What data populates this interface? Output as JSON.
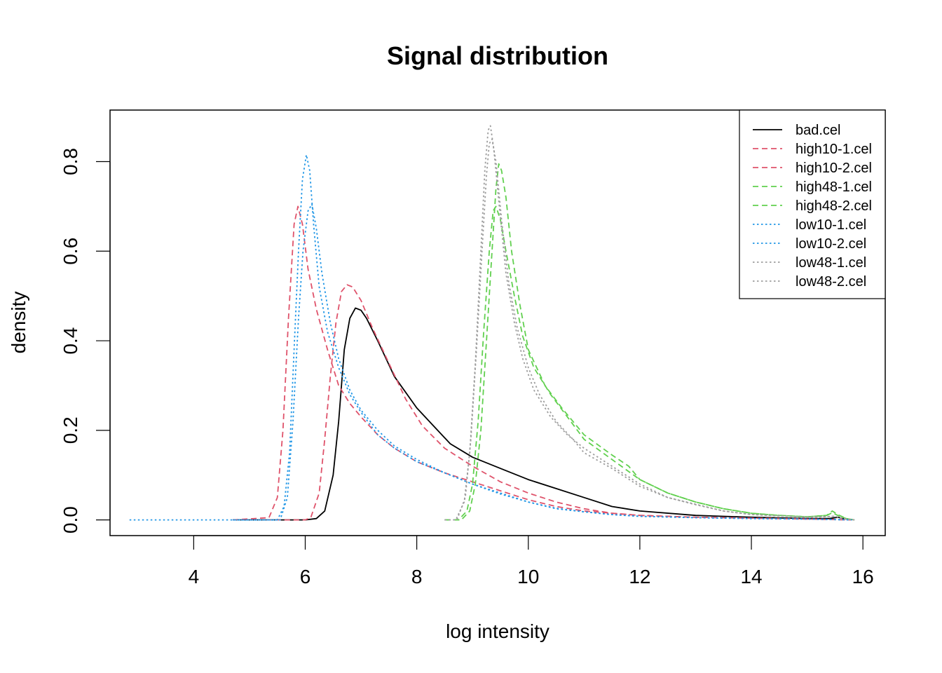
{
  "chart_data": {
    "type": "line",
    "title": "Signal distribution",
    "xlabel": "log intensity",
    "ylabel": "density",
    "xlim": [
      2.5,
      16.4
    ],
    "ylim": [
      -0.035,
      0.915
    ],
    "x_ticks": [
      4,
      6,
      8,
      10,
      12,
      14,
      16
    ],
    "y_ticks": [
      0.0,
      0.2,
      0.4,
      0.6,
      0.8
    ],
    "x_tick_labels": [
      "4",
      "6",
      "8",
      "10",
      "12",
      "14",
      "16"
    ],
    "y_tick_labels": [
      "0.0",
      "0.2",
      "0.4",
      "0.6",
      "0.8"
    ],
    "grid": false,
    "legend_position": "top-right",
    "series": [
      {
        "name": "bad.cel",
        "color": "#000000",
        "dash": "solid",
        "points": [
          [
            4.7,
            0
          ],
          [
            6.0,
            0
          ],
          [
            6.2,
            0.003
          ],
          [
            6.35,
            0.02
          ],
          [
            6.5,
            0.1
          ],
          [
            6.6,
            0.22
          ],
          [
            6.7,
            0.38
          ],
          [
            6.8,
            0.45
          ],
          [
            6.9,
            0.473
          ],
          [
            7.0,
            0.468
          ],
          [
            7.1,
            0.45
          ],
          [
            7.3,
            0.4
          ],
          [
            7.6,
            0.32
          ],
          [
            8.0,
            0.25
          ],
          [
            8.3,
            0.21
          ],
          [
            8.6,
            0.17
          ],
          [
            9.0,
            0.14
          ],
          [
            9.5,
            0.115
          ],
          [
            10.0,
            0.09
          ],
          [
            10.5,
            0.07
          ],
          [
            11.0,
            0.05
          ],
          [
            11.5,
            0.03
          ],
          [
            12.0,
            0.02
          ],
          [
            13.0,
            0.01
          ],
          [
            14.0,
            0.006
          ],
          [
            15.0,
            0.003
          ],
          [
            15.4,
            0.003
          ],
          [
            15.55,
            0.006
          ],
          [
            15.65,
            0.003
          ],
          [
            15.8,
            0
          ]
        ]
      },
      {
        "name": "high10-1.cel",
        "color": "#DF536B",
        "dash": "dashed",
        "points": [
          [
            5.3,
            0
          ],
          [
            6.0,
            0
          ],
          [
            6.1,
            0.005
          ],
          [
            6.25,
            0.06
          ],
          [
            6.35,
            0.18
          ],
          [
            6.45,
            0.32
          ],
          [
            6.55,
            0.44
          ],
          [
            6.65,
            0.51
          ],
          [
            6.75,
            0.525
          ],
          [
            6.85,
            0.52
          ],
          [
            7.0,
            0.49
          ],
          [
            7.2,
            0.43
          ],
          [
            7.5,
            0.35
          ],
          [
            7.8,
            0.27
          ],
          [
            8.1,
            0.21
          ],
          [
            8.5,
            0.16
          ],
          [
            9.0,
            0.12
          ],
          [
            9.5,
            0.085
          ],
          [
            10.0,
            0.06
          ],
          [
            10.5,
            0.04
          ],
          [
            11.0,
            0.025
          ],
          [
            11.5,
            0.015
          ],
          [
            12.0,
            0.01
          ],
          [
            13.0,
            0.006
          ],
          [
            14.0,
            0.004
          ],
          [
            15.0,
            0.002
          ],
          [
            15.8,
            0
          ]
        ]
      },
      {
        "name": "high10-2.cel",
        "color": "#DF536B",
        "dash": "dashed",
        "points": [
          [
            4.7,
            0
          ],
          [
            5.35,
            0.005
          ],
          [
            5.5,
            0.05
          ],
          [
            5.6,
            0.2
          ],
          [
            5.7,
            0.45
          ],
          [
            5.8,
            0.66
          ],
          [
            5.87,
            0.7
          ],
          [
            5.95,
            0.66
          ],
          [
            6.05,
            0.56
          ],
          [
            6.2,
            0.47
          ],
          [
            6.4,
            0.38
          ],
          [
            6.6,
            0.3
          ],
          [
            6.8,
            0.26
          ],
          [
            7.0,
            0.23
          ],
          [
            7.3,
            0.19
          ],
          [
            7.6,
            0.16
          ],
          [
            8.0,
            0.13
          ],
          [
            8.5,
            0.105
          ],
          [
            9.0,
            0.085
          ],
          [
            9.5,
            0.065
          ],
          [
            10.0,
            0.045
          ],
          [
            10.5,
            0.03
          ],
          [
            11.0,
            0.02
          ],
          [
            11.5,
            0.015
          ],
          [
            12.0,
            0.01
          ],
          [
            13.0,
            0.006
          ],
          [
            14.0,
            0.004
          ],
          [
            15.0,
            0.002
          ],
          [
            15.8,
            0
          ]
        ]
      },
      {
        "name": "high48-1.cel",
        "color": "#61D04F",
        "dash": "dashed",
        "points": [
          [
            8.5,
            0
          ],
          [
            8.8,
            0
          ],
          [
            8.95,
            0.02
          ],
          [
            9.05,
            0.08
          ],
          [
            9.15,
            0.2
          ],
          [
            9.25,
            0.4
          ],
          [
            9.35,
            0.6
          ],
          [
            9.42,
            0.74
          ],
          [
            9.47,
            0.795
          ],
          [
            9.52,
            0.78
          ],
          [
            9.6,
            0.72
          ],
          [
            9.7,
            0.6
          ],
          [
            9.85,
            0.48
          ],
          [
            10.0,
            0.38
          ],
          [
            10.3,
            0.3
          ],
          [
            10.6,
            0.25
          ],
          [
            11.0,
            0.19
          ],
          [
            11.5,
            0.145
          ],
          [
            11.8,
            0.12
          ],
          [
            12.0,
            0.09
          ],
          [
            12.5,
            0.06
          ],
          [
            13.0,
            0.04
          ],
          [
            13.5,
            0.025
          ],
          [
            14.0,
            0.015
          ],
          [
            14.5,
            0.01
          ],
          [
            15.0,
            0.007
          ],
          [
            15.35,
            0.01
          ],
          [
            15.45,
            0.02
          ],
          [
            15.55,
            0.012
          ],
          [
            15.7,
            0.003
          ],
          [
            15.85,
            0
          ]
        ]
      },
      {
        "name": "high48-2.cel",
        "color": "#61D04F",
        "dash": "dashed",
        "points": [
          [
            8.5,
            0
          ],
          [
            8.75,
            0
          ],
          [
            8.9,
            0.02
          ],
          [
            9.0,
            0.08
          ],
          [
            9.1,
            0.22
          ],
          [
            9.2,
            0.42
          ],
          [
            9.3,
            0.6
          ],
          [
            9.37,
            0.69
          ],
          [
            9.42,
            0.7
          ],
          [
            9.5,
            0.67
          ],
          [
            9.6,
            0.6
          ],
          [
            9.75,
            0.5
          ],
          [
            9.9,
            0.41
          ],
          [
            10.1,
            0.34
          ],
          [
            10.4,
            0.28
          ],
          [
            10.7,
            0.23
          ],
          [
            11.0,
            0.18
          ],
          [
            11.5,
            0.135
          ],
          [
            12.0,
            0.09
          ],
          [
            12.5,
            0.06
          ],
          [
            13.0,
            0.04
          ],
          [
            13.5,
            0.025
          ],
          [
            14.0,
            0.015
          ],
          [
            14.5,
            0.01
          ],
          [
            15.0,
            0.007
          ],
          [
            15.35,
            0.01
          ],
          [
            15.45,
            0.016
          ],
          [
            15.55,
            0.01
          ],
          [
            15.7,
            0.003
          ],
          [
            15.85,
            0
          ]
        ]
      },
      {
        "name": "low10-1.cel",
        "color": "#2297E6",
        "dash": "dotted",
        "points": [
          [
            2.85,
            0
          ],
          [
            5.5,
            0
          ],
          [
            5.62,
            0.03
          ],
          [
            5.72,
            0.15
          ],
          [
            5.8,
            0.38
          ],
          [
            5.88,
            0.6
          ],
          [
            5.95,
            0.76
          ],
          [
            6.02,
            0.815
          ],
          [
            6.08,
            0.78
          ],
          [
            6.15,
            0.66
          ],
          [
            6.25,
            0.52
          ],
          [
            6.4,
            0.42
          ],
          [
            6.6,
            0.34
          ],
          [
            6.8,
            0.28
          ],
          [
            7.0,
            0.24
          ],
          [
            7.3,
            0.19
          ],
          [
            7.6,
            0.16
          ],
          [
            8.0,
            0.13
          ],
          [
            8.5,
            0.105
          ],
          [
            9.0,
            0.08
          ],
          [
            9.5,
            0.06
          ],
          [
            10.0,
            0.04
          ],
          [
            10.5,
            0.025
          ],
          [
            11.0,
            0.018
          ],
          [
            11.5,
            0.012
          ],
          [
            12.0,
            0.008
          ],
          [
            13.0,
            0.005
          ],
          [
            14.0,
            0.003
          ],
          [
            15.0,
            0.002
          ],
          [
            15.8,
            0
          ]
        ]
      },
      {
        "name": "low10-2.cel",
        "color": "#2297E6",
        "dash": "dotted",
        "points": [
          [
            4.7,
            0
          ],
          [
            5.55,
            0
          ],
          [
            5.68,
            0.05
          ],
          [
            5.78,
            0.22
          ],
          [
            5.88,
            0.45
          ],
          [
            5.96,
            0.6
          ],
          [
            6.05,
            0.69
          ],
          [
            6.12,
            0.705
          ],
          [
            6.2,
            0.65
          ],
          [
            6.3,
            0.55
          ],
          [
            6.45,
            0.44
          ],
          [
            6.6,
            0.36
          ],
          [
            6.8,
            0.29
          ],
          [
            7.0,
            0.245
          ],
          [
            7.3,
            0.2
          ],
          [
            7.6,
            0.165
          ],
          [
            8.0,
            0.135
          ],
          [
            8.5,
            0.105
          ],
          [
            9.0,
            0.08
          ],
          [
            9.5,
            0.058
          ],
          [
            10.0,
            0.04
          ],
          [
            10.5,
            0.026
          ],
          [
            11.0,
            0.018
          ],
          [
            11.5,
            0.012
          ],
          [
            12.0,
            0.008
          ],
          [
            13.0,
            0.005
          ],
          [
            14.0,
            0.003
          ],
          [
            15.0,
            0.002
          ],
          [
            15.8,
            0
          ]
        ]
      },
      {
        "name": "low48-1.cel",
        "color": "#9E9E9E",
        "dash": "dotted",
        "points": [
          [
            8.5,
            0
          ],
          [
            8.7,
            0
          ],
          [
            8.85,
            0.04
          ],
          [
            8.95,
            0.15
          ],
          [
            9.05,
            0.35
          ],
          [
            9.15,
            0.6
          ],
          [
            9.22,
            0.78
          ],
          [
            9.28,
            0.87
          ],
          [
            9.32,
            0.88
          ],
          [
            9.38,
            0.83
          ],
          [
            9.48,
            0.7
          ],
          [
            9.6,
            0.55
          ],
          [
            9.75,
            0.44
          ],
          [
            9.9,
            0.36
          ],
          [
            10.1,
            0.29
          ],
          [
            10.4,
            0.23
          ],
          [
            10.7,
            0.19
          ],
          [
            11.0,
            0.16
          ],
          [
            11.5,
            0.12
          ],
          [
            12.0,
            0.08
          ],
          [
            12.5,
            0.05
          ],
          [
            13.0,
            0.035
          ],
          [
            13.5,
            0.02
          ],
          [
            14.0,
            0.012
          ],
          [
            15.0,
            0.006
          ],
          [
            15.5,
            0.008
          ],
          [
            15.7,
            0.002
          ],
          [
            15.85,
            0
          ]
        ]
      },
      {
        "name": "low48-2.cel",
        "color": "#9E9E9E",
        "dash": "dotted",
        "points": [
          [
            8.5,
            0
          ],
          [
            8.72,
            0
          ],
          [
            8.87,
            0.05
          ],
          [
            8.97,
            0.18
          ],
          [
            9.07,
            0.38
          ],
          [
            9.17,
            0.6
          ],
          [
            9.25,
            0.77
          ],
          [
            9.3,
            0.84
          ],
          [
            9.35,
            0.85
          ],
          [
            9.42,
            0.8
          ],
          [
            9.52,
            0.67
          ],
          [
            9.65,
            0.53
          ],
          [
            9.8,
            0.43
          ],
          [
            10.0,
            0.34
          ],
          [
            10.2,
            0.28
          ],
          [
            10.5,
            0.22
          ],
          [
            10.8,
            0.18
          ],
          [
            11.0,
            0.15
          ],
          [
            11.5,
            0.115
          ],
          [
            12.0,
            0.075
          ],
          [
            12.5,
            0.05
          ],
          [
            13.0,
            0.034
          ],
          [
            13.5,
            0.02
          ],
          [
            14.0,
            0.012
          ],
          [
            15.0,
            0.006
          ],
          [
            15.5,
            0.008
          ],
          [
            15.7,
            0.002
          ],
          [
            15.85,
            0
          ]
        ]
      }
    ]
  }
}
